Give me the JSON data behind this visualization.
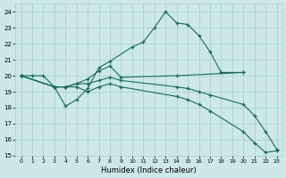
{
  "xlabel": "Humidex (Indice chaleur)",
  "xlim": [
    -0.5,
    23.5
  ],
  "ylim": [
    15,
    24.5
  ],
  "yticks": [
    15,
    16,
    17,
    18,
    19,
    20,
    21,
    22,
    23,
    24
  ],
  "xticks": [
    0,
    1,
    2,
    3,
    4,
    5,
    6,
    7,
    8,
    9,
    10,
    11,
    12,
    13,
    14,
    15,
    16,
    17,
    18,
    19,
    20,
    21,
    22,
    23
  ],
  "bg_color": "#cce8e8",
  "grid_color": "#aacccc",
  "line_color": "#1a6b5a",
  "series": [
    {
      "x": [
        0,
        3,
        4,
        5,
        6,
        7,
        8,
        10,
        11,
        12,
        13,
        14,
        15,
        16,
        17,
        18,
        20
      ],
      "y": [
        20.0,
        19.3,
        18.1,
        18.5,
        19.2,
        20.5,
        20.9,
        21.8,
        22.1,
        23.0,
        24.0,
        23.3,
        23.2,
        22.5,
        21.5,
        20.2,
        20.2
      ]
    },
    {
      "x": [
        0,
        1,
        2,
        3,
        4,
        5,
        6,
        7,
        8,
        9,
        14,
        20
      ],
      "y": [
        20.0,
        20.0,
        20.0,
        19.3,
        19.3,
        19.5,
        19.8,
        20.3,
        20.6,
        19.9,
        20.0,
        20.2
      ]
    },
    {
      "x": [
        0,
        3,
        4,
        5,
        6,
        7,
        8,
        9,
        14,
        15,
        16,
        17,
        20,
        21,
        22,
        23
      ],
      "y": [
        20.0,
        19.3,
        19.3,
        19.5,
        19.5,
        19.7,
        19.9,
        19.7,
        19.3,
        19.2,
        19.0,
        18.8,
        18.2,
        17.5,
        16.5,
        15.4
      ]
    },
    {
      "x": [
        0,
        3,
        4,
        5,
        6,
        7,
        8,
        9,
        14,
        15,
        16,
        17,
        20,
        21,
        22,
        23
      ],
      "y": [
        20.0,
        19.3,
        19.3,
        19.3,
        19.0,
        19.3,
        19.5,
        19.3,
        18.7,
        18.5,
        18.2,
        17.8,
        16.5,
        15.8,
        15.2,
        15.3
      ]
    }
  ]
}
